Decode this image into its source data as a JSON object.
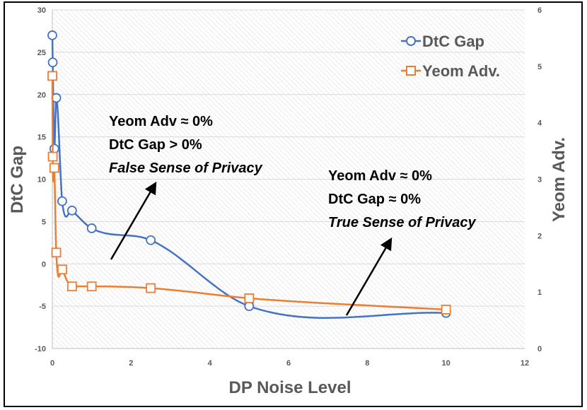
{
  "chart_data": {
    "type": "line",
    "title": "",
    "xlabel": "DP Noise Level",
    "ylabel": "DtC Gap",
    "y2label": "Yeom Adv.",
    "xlim": [
      0,
      12
    ],
    "ylim": [
      -10,
      30
    ],
    "y2lim": [
      0,
      6
    ],
    "x_ticks": [
      "0",
      "2",
      "4",
      "6",
      "8",
      "10",
      "12"
    ],
    "y_ticks": [
      "-10",
      "-5",
      "0",
      "5",
      "10",
      "15",
      "20",
      "25",
      "30"
    ],
    "y2_ticks": [
      "0",
      "1",
      "2",
      "3",
      "4",
      "5",
      "6"
    ],
    "grid": true,
    "legend_position": "top-right",
    "series": [
      {
        "name": "DtC Gap",
        "axis": "left",
        "color": "#4472c4",
        "marker": "circle",
        "x": [
          0,
          0.01,
          0.05,
          0.1,
          0.25,
          0.5,
          1,
          2.5,
          5,
          10
        ],
        "y": [
          27,
          23.8,
          13.6,
          19.6,
          7.4,
          6.3,
          4.2,
          2.8,
          -5,
          -5.8
        ]
      },
      {
        "name": "Yeom Adv.",
        "axis": "right",
        "color": "#ed7d31",
        "marker": "square",
        "x": [
          0,
          0.01,
          0.05,
          0.1,
          0.25,
          0.5,
          1,
          2.5,
          5,
          10
        ],
        "y": [
          4.83,
          3.4,
          3.2,
          1.7,
          1.4,
          1.1,
          1.1,
          1.07,
          0.89,
          0.69
        ]
      }
    ],
    "annotations": [
      {
        "lines": [
          "Yeom Adv ≈ 0%",
          "DtC Gap > 0%",
          "False Sense of Privacy"
        ],
        "italic_last": true
      },
      {
        "lines": [
          "Yeom Adv ≈ 0%",
          "DtC Gap ≈ 0%",
          "True Sense of Privacy"
        ],
        "italic_last": true
      }
    ]
  }
}
